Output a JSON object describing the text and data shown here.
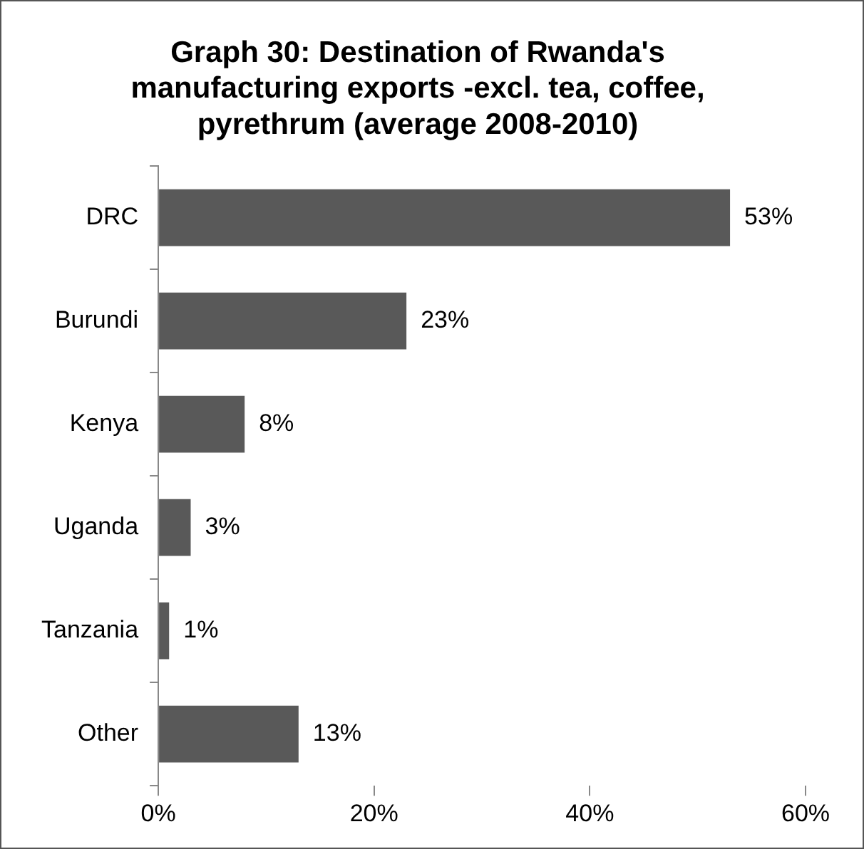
{
  "chart_data": {
    "type": "bar",
    "orientation": "horizontal",
    "title": "Graph 30: Destination of Rwanda's manufacturing exports -excl. tea, coffee, pyrethrum (average 2008-2010)",
    "categories": [
      "DRC",
      "Burundi",
      "Kenya",
      "Uganda",
      "Tanzania",
      "Other"
    ],
    "values": [
      53,
      23,
      8,
      3,
      1,
      13
    ],
    "value_labels": [
      "53%",
      "23%",
      "8%",
      "3%",
      "1%",
      "13%"
    ],
    "color": "#595959",
    "xlim": [
      0,
      60
    ],
    "xticks": [
      {
        "value": 0,
        "label": "0%"
      },
      {
        "value": 20,
        "label": "20%"
      },
      {
        "value": 40,
        "label": "40%"
      },
      {
        "value": 60,
        "label": "60%"
      }
    ]
  }
}
